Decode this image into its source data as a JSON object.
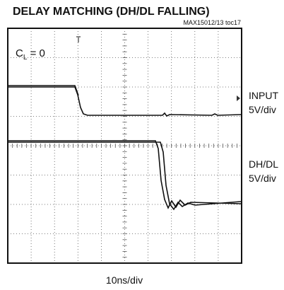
{
  "header": {
    "title": "DELAY MATCHING (DH/DL FALLING)",
    "figure_id": "MAX15012/13 toc17"
  },
  "screen": {
    "condition": {
      "symbol": "C",
      "subscript": "L",
      "rest": " = 0"
    }
  },
  "channels": [
    {
      "name": "INPUT",
      "scale": "5V/div"
    },
    {
      "name": "DH/DL",
      "scale": "5V/div"
    }
  ],
  "timebase": "10ns/div"
}
